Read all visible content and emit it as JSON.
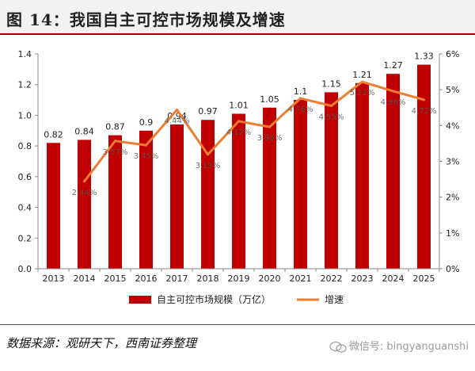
{
  "title": "图 14：我国自主可控市场规模及增速",
  "source": "数据来源：观研天下，西南证券整理",
  "watermark": "微信号: bingyanguanshi",
  "colors": {
    "bar": "#c00000",
    "line": "#ed7d31",
    "title_rule": "#a80000"
  },
  "chart_data": {
    "type": "bar",
    "categories": [
      "2013",
      "2014",
      "2015",
      "2016",
      "2017",
      "2018",
      "2019",
      "2020",
      "2021",
      "2022",
      "2023",
      "2024",
      "2025"
    ],
    "series": [
      {
        "name": "自主可控市场规模（万亿）",
        "type": "bar",
        "axis": "left",
        "values": [
          0.82,
          0.84,
          0.87,
          0.9,
          0.94,
          0.97,
          1.01,
          1.05,
          1.1,
          1.15,
          1.21,
          1.27,
          1.33
        ],
        "labels": [
          "0.82",
          "0.84",
          "0.87",
          "0.9",
          "0.94",
          "0.97",
          "1.01",
          "1.05",
          "1.1",
          "1.15",
          "1.21",
          "1.27",
          "1.33"
        ]
      },
      {
        "name": "增速",
        "type": "line",
        "axis": "right",
        "values": [
          null,
          2.44,
          3.57,
          3.45,
          4.44,
          3.19,
          4.12,
          3.96,
          4.76,
          4.55,
          5.22,
          4.96,
          4.72
        ],
        "labels": [
          "",
          "2.44%",
          "3.57%",
          "3.45%",
          "4.44%",
          "3.19%",
          "4.12%",
          "3.96%",
          "4.76%",
          "4.55%",
          "5.22%",
          "4.96%",
          "4.72%"
        ]
      }
    ],
    "yleft": {
      "min": 0,
      "max": 1.4,
      "ticks": [
        "0.0",
        "0.2",
        "0.4",
        "0.6",
        "0.8",
        "1.0",
        "1.2",
        "1.4"
      ]
    },
    "yright": {
      "min": 0,
      "max": 6,
      "ticks": [
        "0%",
        "1%",
        "2%",
        "3%",
        "4%",
        "5%",
        "6%"
      ]
    },
    "legend": {
      "position": "bottom"
    }
  }
}
